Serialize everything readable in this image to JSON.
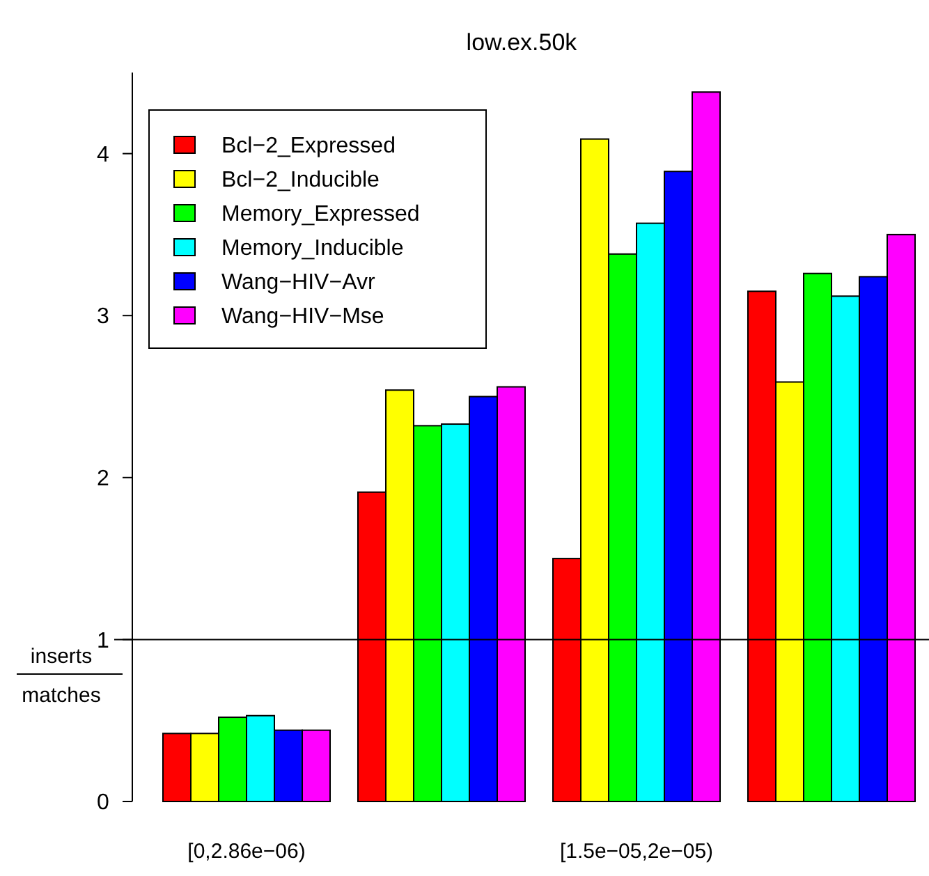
{
  "chart_data": {
    "type": "bar",
    "title": "low.ex.50k",
    "categories": [
      "[0,2.86e−06)",
      null,
      "[1.5e−05,2e−05)",
      null
    ],
    "series": [
      {
        "name": "Bcl−2_Expressed",
        "color": "#ff0000",
        "values": [
          0.42,
          1.91,
          1.5,
          3.15
        ]
      },
      {
        "name": "Bcl−2_Inducible",
        "color": "#ffff00",
        "values": [
          0.42,
          2.54,
          4.09,
          2.59
        ]
      },
      {
        "name": "Memory_Expressed",
        "color": "#00ff00",
        "values": [
          0.52,
          2.32,
          3.38,
          3.26
        ]
      },
      {
        "name": "Memory_Inducible",
        "color": "#00ffff",
        "values": [
          0.53,
          2.33,
          3.57,
          3.12
        ]
      },
      {
        "name": "Wang−HIV−Avr",
        "color": "#0000ff",
        "values": [
          0.44,
          2.5,
          3.89,
          3.24
        ]
      },
      {
        "name": "Wang−HIV−Mse",
        "color": "#ff00ff",
        "values": [
          0.44,
          2.56,
          4.38,
          3.5
        ]
      }
    ],
    "ylim": [
      0,
      4.5
    ],
    "yticks": [
      0,
      1,
      2,
      3,
      4
    ],
    "ref_lines": [
      {
        "axis": "y",
        "value": 1
      }
    ],
    "annotations": [
      "inserts",
      "matches"
    ],
    "legend": "top left",
    "grid": false
  }
}
